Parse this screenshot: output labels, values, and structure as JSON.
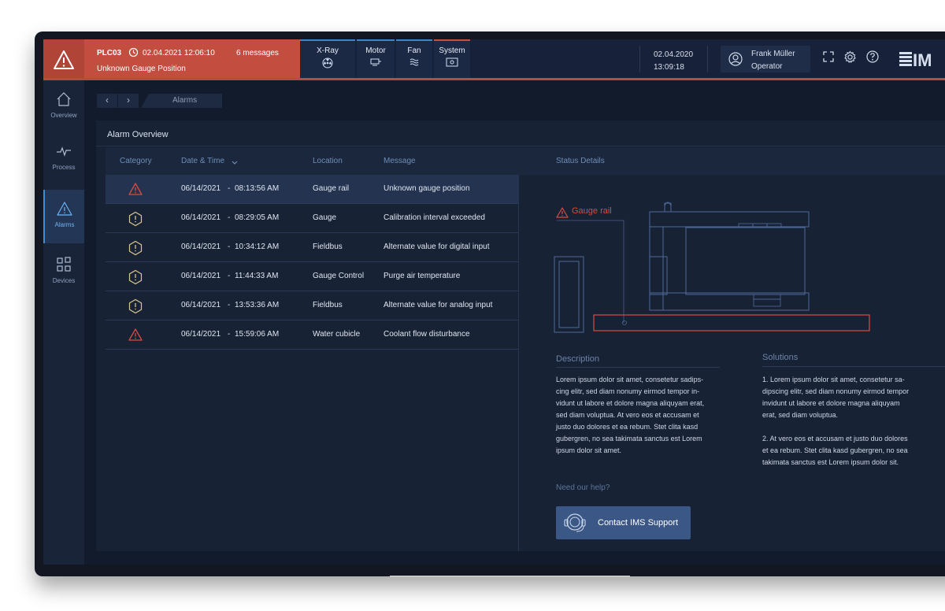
{
  "alarm_banner": {
    "plc": "PLC03",
    "timestamp": "02.04.2021 12:06:10",
    "messages": "6 messages",
    "description": "Unknown Gauge Position"
  },
  "nav_tabs": [
    {
      "label": "X-Ray",
      "icon": "radiation-icon"
    },
    {
      "label": "Motor",
      "icon": "motor-icon"
    },
    {
      "label": "Fan",
      "icon": "fan-waves-icon"
    },
    {
      "label": "System",
      "icon": "system-screen-icon"
    }
  ],
  "header": {
    "date": "02.04.2020",
    "time": "13:09:18",
    "user_name": "Frank Müller",
    "user_role": "Operator",
    "logo_text": "IM"
  },
  "sidebar": {
    "items": [
      {
        "label": "Overview",
        "icon": "home-icon"
      },
      {
        "label": "Process",
        "icon": "pulse-icon"
      },
      {
        "label": "Alarms",
        "icon": "warning-icon",
        "active": true
      },
      {
        "label": "Devices",
        "icon": "grid-icon"
      }
    ]
  },
  "breadcrumb": {
    "back": "‹",
    "forward": "›",
    "current": "Alarms"
  },
  "panel": {
    "title": "Alarm Overview"
  },
  "table": {
    "columns": [
      "Category",
      "Date & Time",
      "Location",
      "Message"
    ],
    "status_column": "Status Details",
    "rows": [
      {
        "category": "alarm",
        "date": "06/14/2021",
        "sep": "-",
        "time": "08:13:56 AM",
        "location": "Gauge rail",
        "message": "Unknown gauge position"
      },
      {
        "category": "warning",
        "date": "06/14/2021",
        "sep": "-",
        "time": "08:29:05 AM",
        "location": "Gauge",
        "message": "Calibration interval exceeded"
      },
      {
        "category": "warning",
        "date": "06/14/2021",
        "sep": "-",
        "time": "10:34:12 AM",
        "location": "Fieldbus",
        "message": "Alternate value for digital input"
      },
      {
        "category": "warning",
        "date": "06/14/2021",
        "sep": "-",
        "time": "11:44:33 AM",
        "location": "Gauge Control",
        "message": "Purge air temperature"
      },
      {
        "category": "warning",
        "date": "06/14/2021",
        "sep": "-",
        "time": "13:53:36 AM",
        "location": "Fieldbus",
        "message": "Alternate value for analog input"
      },
      {
        "category": "alarm",
        "date": "06/14/2021",
        "sep": "-",
        "time": "15:59:06 AM",
        "location": "Water cubicle",
        "message": "Coolant flow disturbance"
      }
    ]
  },
  "status": {
    "highlight_label": "Gauge rail",
    "description_title": "Description",
    "description_lines": [
      "Lorem ipsum dolor sit amet, consetetur sadips-",
      "cing elitr, sed diam nonumy eirmod tempor in-",
      "vidunt ut labore et dolore magna aliquyam erat,",
      "sed diam voluptua. At vero eos et accusam et",
      "justo duo dolores et ea rebum. Stet clita kasd",
      "gubergren, no sea takimata sanctus est Lorem",
      "ipsum dolor sit amet."
    ],
    "solutions_title": "Solutions",
    "solution1_lines": [
      "1. Lorem ipsum dolor sit amet, consetetur sa-",
      "dipscing elitr, sed diam nonumy eirmod tempor",
      "invidunt ut labore et dolore magna aliquyam",
      "erat, sed diam voluptua."
    ],
    "solution2_lines": [
      "2. At vero eos et accusam et justo duo dolores",
      "et ea rebum. Stet clita kasd gubergren, no sea",
      "takimata sanctus est Lorem ipsum dolor sit."
    ],
    "help_text": "Need our help?",
    "support_button": "Contact IMS Support"
  },
  "colors": {
    "alarm_red": "#c34e40",
    "accent_blue": "#3a8fd8",
    "warning_yellow": "#d9c690",
    "background": "#121b2b"
  }
}
